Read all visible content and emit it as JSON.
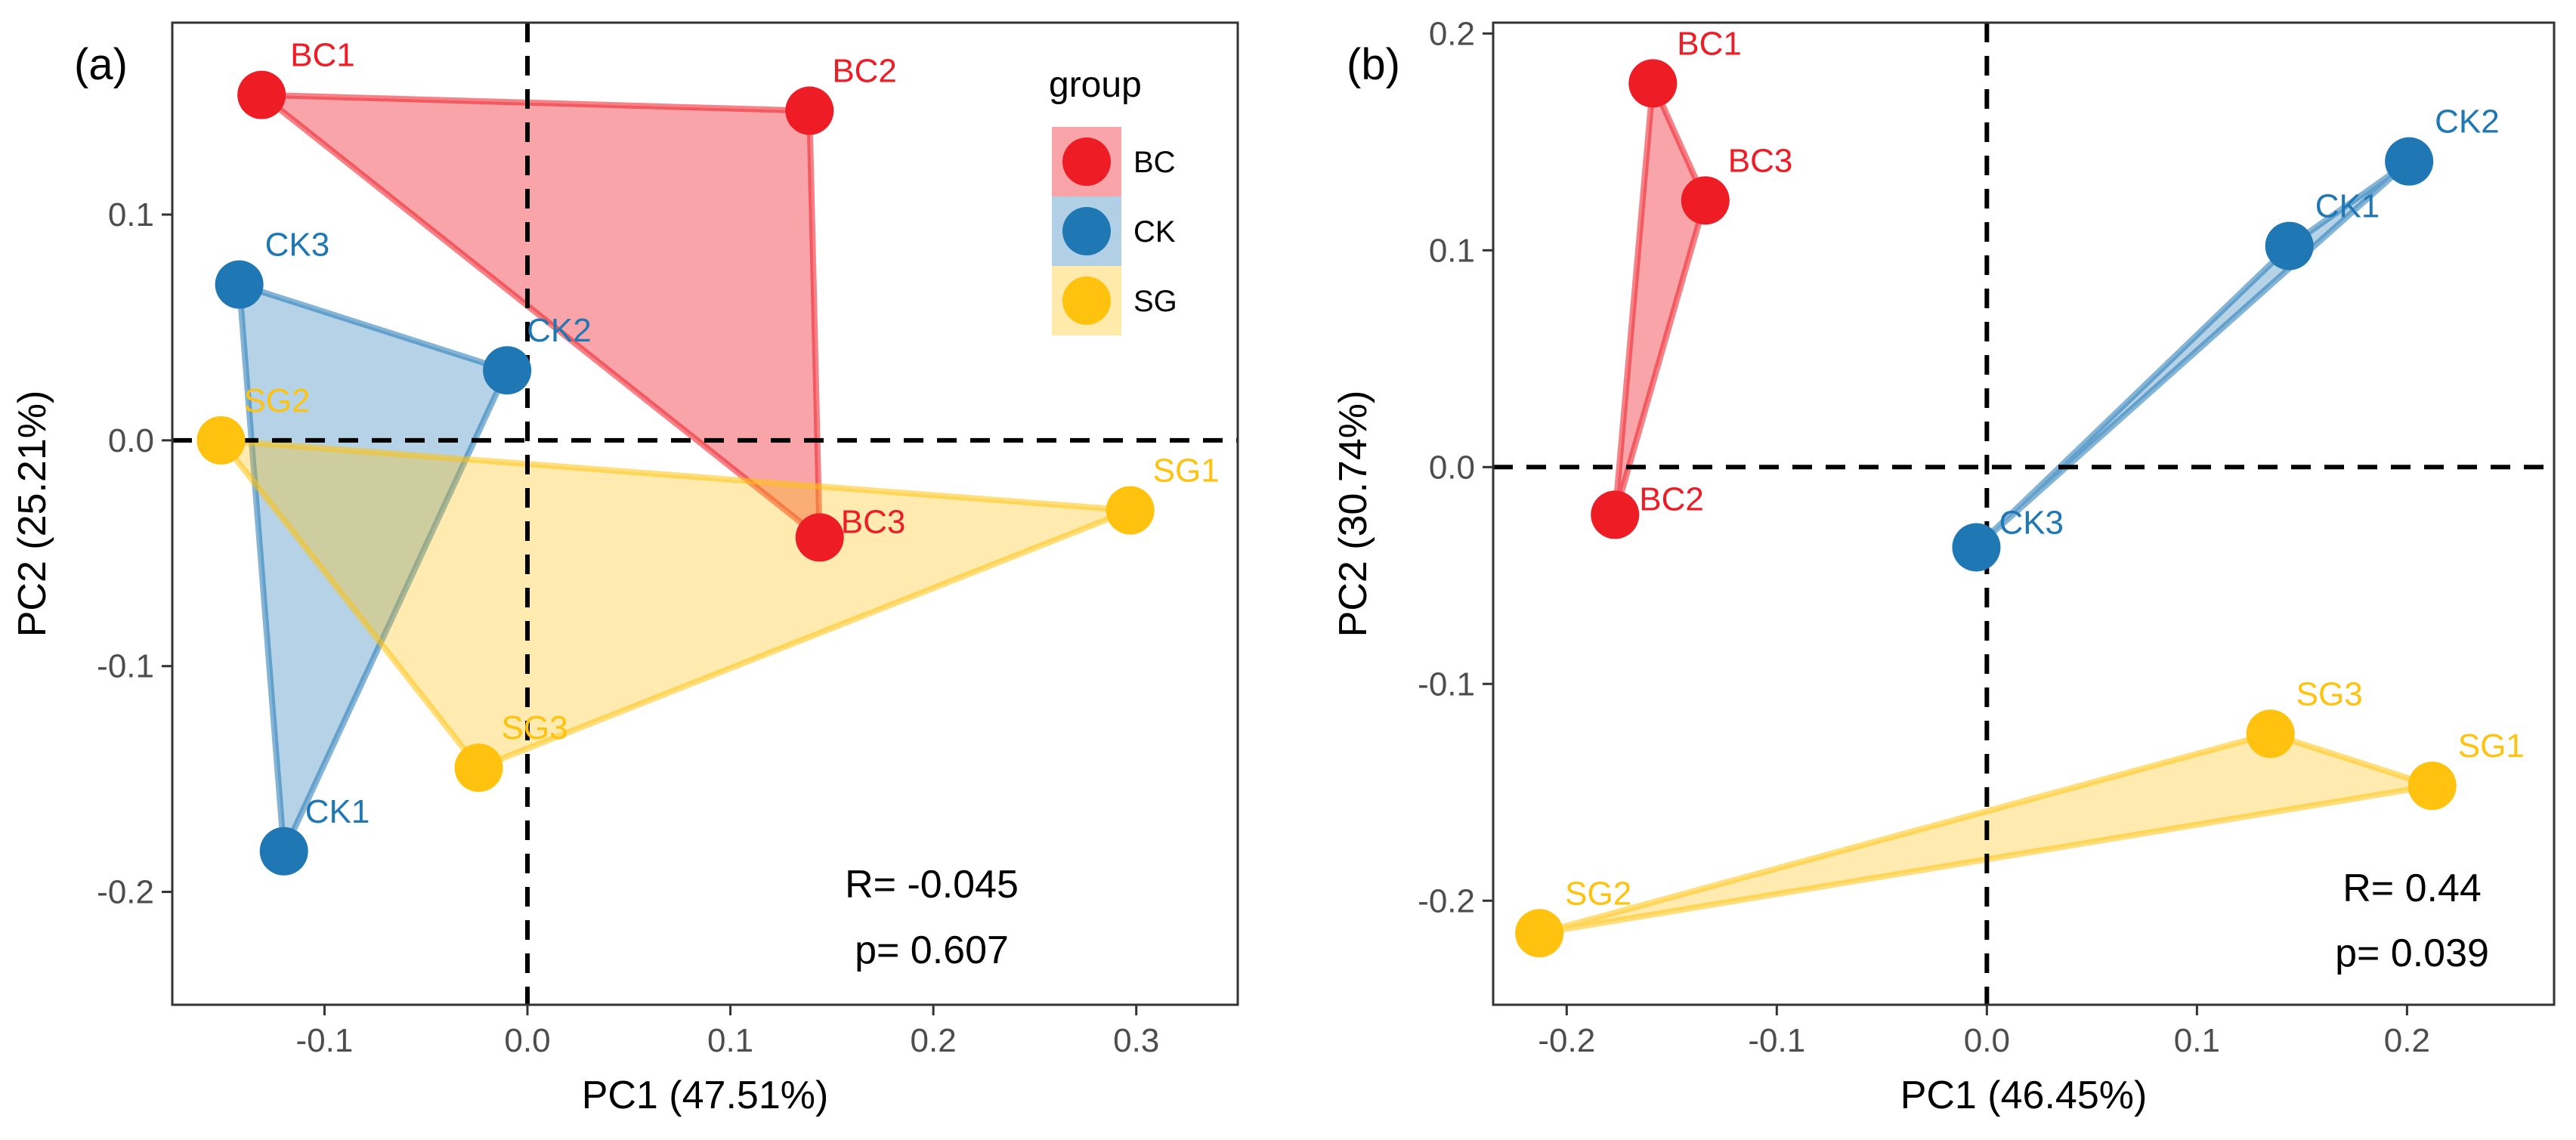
{
  "colors": {
    "BC": "#EE1C25",
    "CK": "#1F77B4",
    "SG": "#FFC20E"
  },
  "legend": {
    "title": "group",
    "items": [
      {
        "group": "BC",
        "label": "BC"
      },
      {
        "group": "CK",
        "label": "CK"
      },
      {
        "group": "SG",
        "label": "SG"
      }
    ]
  },
  "chart_data": [
    {
      "type": "scatter",
      "panel_label": "(a)",
      "xlabel": "PC1 (47.51%)",
      "ylabel": "PC2 (25.21%)",
      "xlim": [
        -0.175,
        0.35
      ],
      "ylim": [
        -0.25,
        0.185
      ],
      "xticks": [
        {
          "v": -0.1,
          "label": "-0.1"
        },
        {
          "v": 0,
          "label": "0.0"
        },
        {
          "v": 0.1,
          "label": "0.1"
        },
        {
          "v": 0.2,
          "label": "0.2"
        },
        {
          "v": 0.3,
          "label": "0.3"
        }
      ],
      "yticks": [
        {
          "v": -0.2,
          "label": "-0.2"
        },
        {
          "v": -0.1,
          "label": "-0.1"
        },
        {
          "v": 0,
          "label": "0.0"
        },
        {
          "v": 0.1,
          "label": "0.1"
        }
      ],
      "points": [
        {
          "name": "BC1",
          "group": "BC",
          "x": -0.131,
          "y": 0.153
        },
        {
          "name": "BC2",
          "group": "BC",
          "x": 0.139,
          "y": 0.146
        },
        {
          "name": "BC3",
          "group": "BC",
          "x": 0.144,
          "y": -0.043
        },
        {
          "name": "CK1",
          "group": "CK",
          "x": -0.12,
          "y": -0.182
        },
        {
          "name": "CK2",
          "group": "CK",
          "x": -0.01,
          "y": 0.031
        },
        {
          "name": "CK3",
          "group": "CK",
          "x": -0.142,
          "y": 0.069
        },
        {
          "name": "SG1",
          "group": "SG",
          "x": 0.297,
          "y": -0.031
        },
        {
          "name": "SG2",
          "group": "SG",
          "x": -0.151,
          "y": 0.0
        },
        {
          "name": "SG3",
          "group": "SG",
          "x": -0.024,
          "y": -0.145
        }
      ],
      "hulls": [
        {
          "group": "BC",
          "points": [
            "BC1",
            "BC2",
            "BC3"
          ]
        },
        {
          "group": "CK",
          "points": [
            "CK3",
            "CK2",
            "CK1"
          ]
        },
        {
          "group": "SG",
          "points": [
            "SG2",
            "SG1",
            "SG3"
          ]
        }
      ],
      "stat_r": "R= -0.045",
      "stat_p": "p= 0.607",
      "legend": true
    },
    {
      "type": "scatter",
      "panel_label": "(b)",
      "xlabel": "PC1 (46.45%)",
      "ylabel": "PC2 (30.74%)",
      "xlim": [
        -0.235,
        0.27
      ],
      "ylim": [
        -0.248,
        0.205
      ],
      "xticks": [
        {
          "v": -0.2,
          "label": "-0.2"
        },
        {
          "v": -0.1,
          "label": "-0.1"
        },
        {
          "v": 0,
          "label": "0.0"
        },
        {
          "v": 0.1,
          "label": "0.1"
        },
        {
          "v": 0.2,
          "label": "0.2"
        }
      ],
      "yticks": [
        {
          "v": -0.2,
          "label": "-0.2"
        },
        {
          "v": -0.1,
          "label": "-0.1"
        },
        {
          "v": 0,
          "label": "0.0"
        },
        {
          "v": 0.1,
          "label": "0.1"
        },
        {
          "v": 0.2,
          "label": "0.2"
        }
      ],
      "points": [
        {
          "name": "BC1",
          "group": "BC",
          "x": -0.159,
          "y": 0.177
        },
        {
          "name": "BC2",
          "group": "BC",
          "x": -0.177,
          "y": -0.022
        },
        {
          "name": "BC3",
          "group": "BC",
          "x": -0.134,
          "y": 0.123
        },
        {
          "name": "CK1",
          "group": "CK",
          "x": 0.144,
          "y": 0.102
        },
        {
          "name": "CK2",
          "group": "CK",
          "x": 0.201,
          "y": 0.141
        },
        {
          "name": "CK3",
          "group": "CK",
          "x": -0.005,
          "y": -0.037
        },
        {
          "name": "SG1",
          "group": "SG",
          "x": 0.212,
          "y": -0.147
        },
        {
          "name": "SG2",
          "group": "SG",
          "x": -0.213,
          "y": -0.215
        },
        {
          "name": "SG3",
          "group": "SG",
          "x": 0.135,
          "y": -0.123
        }
      ],
      "hulls": [
        {
          "group": "BC",
          "points": [
            "BC1",
            "BC3",
            "BC2"
          ]
        },
        {
          "group": "CK",
          "points": [
            "CK3",
            "CK1",
            "CK2"
          ]
        },
        {
          "group": "SG",
          "points": [
            "SG2",
            "SG3",
            "SG1"
          ]
        }
      ],
      "stat_r": "R= 0.44",
      "stat_p": "p= 0.039",
      "legend": false
    }
  ]
}
